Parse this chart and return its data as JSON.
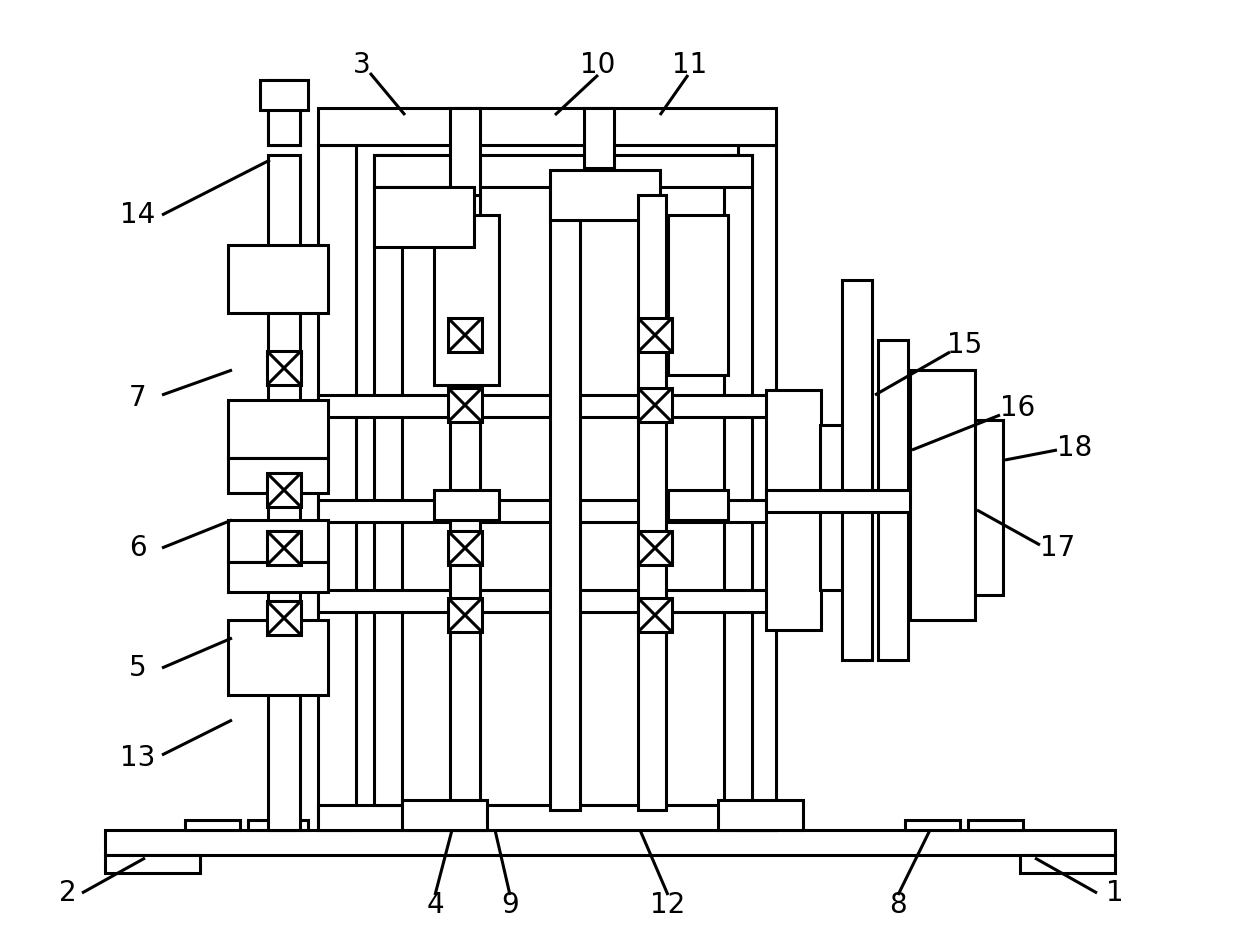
{
  "bg_color": "#ffffff",
  "line_color": "#000000",
  "lw": 2.2
}
